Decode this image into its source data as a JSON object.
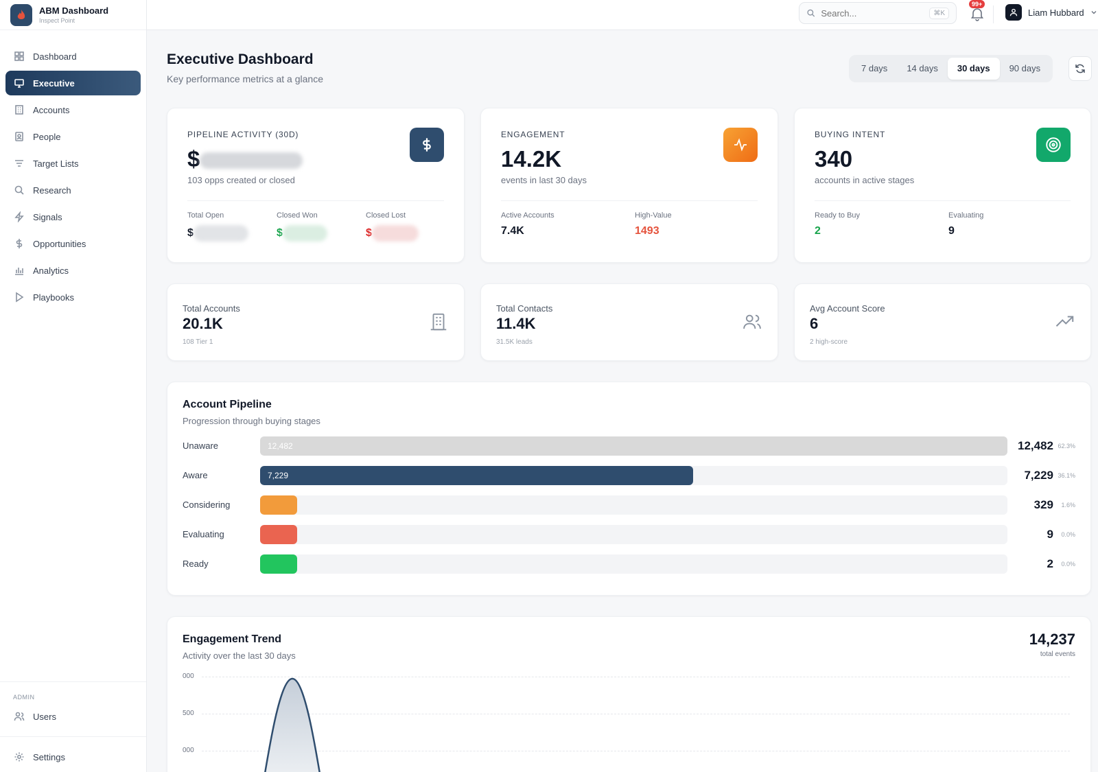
{
  "brand": {
    "title": "ABM Dashboard",
    "subtitle": "Inspect Point"
  },
  "nav": [
    {
      "label": "Dashboard",
      "icon": "grid-icon"
    },
    {
      "label": "Executive",
      "icon": "monitor-icon",
      "active": true
    },
    {
      "label": "Accounts",
      "icon": "building-icon"
    },
    {
      "label": "People",
      "icon": "contact-card-icon"
    },
    {
      "label": "Target Lists",
      "icon": "filter-lines-icon"
    },
    {
      "label": "Research",
      "icon": "search-icon"
    },
    {
      "label": "Signals",
      "icon": "lightning-icon"
    },
    {
      "label": "Opportunities",
      "icon": "dollar-icon"
    },
    {
      "label": "Analytics",
      "icon": "bar-chart-icon"
    },
    {
      "label": "Playbooks",
      "icon": "play-icon"
    }
  ],
  "admin": {
    "label": "ADMIN",
    "users": "Users",
    "settings": "Settings"
  },
  "topbar": {
    "search_placeholder": "Search...",
    "search_shortcut": "⌘K",
    "notif_badge": "99+",
    "user_name": "Liam Hubbard"
  },
  "header": {
    "title": "Executive Dashboard",
    "subtitle": "Key performance metrics at a glance"
  },
  "ranges": [
    "7 days",
    "14 days",
    "30 days",
    "90 days"
  ],
  "active_range": "30 days",
  "kpis": {
    "pipeline": {
      "label": "PIPELINE ACTIVITY (30D)",
      "value_prefix": "$",
      "sub": "103 opps created or closed",
      "stats": [
        {
          "label": "Total Open",
          "prefix": "$",
          "color": "#111827"
        },
        {
          "label": "Closed Won",
          "prefix": "$",
          "color": "#16a34a"
        },
        {
          "label": "Closed Lost",
          "prefix": "$",
          "color": "#dc2626"
        }
      ]
    },
    "engagement": {
      "label": "ENGAGEMENT",
      "value": "14.2K",
      "sub": "events in last 30 days",
      "stats": [
        {
          "label": "Active Accounts",
          "value": "7.4K",
          "color": "#111827"
        },
        {
          "label": "High-Value",
          "value": "1493",
          "color": "#e5533d"
        }
      ]
    },
    "intent": {
      "label": "BUYING INTENT",
      "value": "340",
      "sub": "accounts in active stages",
      "stats": [
        {
          "label": "Ready to Buy",
          "value": "2",
          "color": "#16a34a"
        },
        {
          "label": "Evaluating",
          "value": "9",
          "color": "#111827"
        }
      ]
    }
  },
  "minis": [
    {
      "label": "Total Accounts",
      "value": "20.1K",
      "sub": "108 Tier 1",
      "icon": "building-icon"
    },
    {
      "label": "Total Contacts",
      "value": "11.4K",
      "sub": "31.5K leads",
      "icon": "users-icon"
    },
    {
      "label": "Avg Account Score",
      "value": "6",
      "sub": "2 high-score",
      "icon": "trending-up-icon"
    }
  ],
  "pipeline": {
    "title": "Account Pipeline",
    "subtitle": "Progression through buying stages",
    "stages": [
      {
        "label": "Unaware",
        "count": "12,482",
        "inner": "12,482",
        "pct": "62.3%",
        "fraction": 1.0,
        "color": "#d9d9d9"
      },
      {
        "label": "Aware",
        "count": "7,229",
        "inner": "7,229",
        "pct": "36.1%",
        "fraction": 0.579,
        "color": "#2f4d6e"
      },
      {
        "label": "Considering",
        "count": "329",
        "inner": "",
        "pct": "1.6%",
        "fraction": 0.026,
        "color": "#f29b3b"
      },
      {
        "label": "Evaluating",
        "count": "9",
        "inner": "",
        "pct": "0.0%",
        "fraction": 0.001,
        "color": "#ea6450"
      },
      {
        "label": "Ready",
        "count": "2",
        "inner": "",
        "pct": "0.0%",
        "fraction": 0.0002,
        "color": "#22c55e"
      }
    ]
  },
  "trend": {
    "title": "Engagement Trend",
    "subtitle": "Activity over the last 30 days",
    "total": "14,237",
    "total_label": "total events",
    "ticks": [
      "000",
      "500",
      "000"
    ]
  },
  "colors": {
    "accent": "#2f4d6e",
    "orange": "#f38b1c",
    "green": "#12a86b"
  }
}
